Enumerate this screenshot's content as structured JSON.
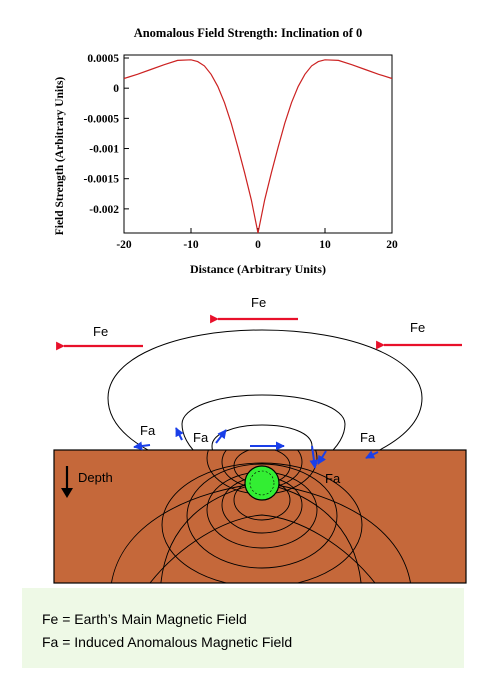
{
  "colors": {
    "curve": "#cc2222",
    "ground": "#c5683a",
    "sphere": "#33ee33",
    "fe_arrow": "#e8102a",
    "fa_arrow": "#1a3fe8",
    "legend_bg": "#eef9e6"
  },
  "chart_data": {
    "type": "line",
    "title": "Anomalous Field Strength: Inclination of 0",
    "xlabel": "Distance (Arbitrary Units)",
    "ylabel": "Field Strength (Arbitrary Units)",
    "xlim": [
      -20,
      20
    ],
    "ylim": [
      -0.0024,
      0.00055
    ],
    "xticks": [
      "-20",
      "-10",
      "0",
      "10",
      "20"
    ],
    "yticks": [
      "0.0005",
      "0",
      "-0.0005",
      "-0.001",
      "-0.0015",
      "-0.002"
    ],
    "series": [
      {
        "x": [
          -20,
          -18,
          -16,
          -14,
          -12,
          -10,
          -9,
          -8,
          -7,
          -6,
          -5,
          -4,
          -3,
          -2,
          -1,
          0,
          1,
          2,
          3,
          4,
          5,
          6,
          7,
          8,
          9,
          10,
          12,
          14,
          16,
          18,
          20
        ],
        "values": [
          0.00016,
          0.00023,
          0.00031,
          0.00039,
          0.00046,
          0.00047,
          0.00044,
          0.00037,
          0.00023,
          3e-05,
          -0.00024,
          -0.00058,
          -0.00098,
          -0.0014,
          -0.00185,
          -0.0024,
          -0.00185,
          -0.0014,
          -0.00098,
          -0.00058,
          -0.00024,
          3e-05,
          0.00023,
          0.00037,
          0.00044,
          0.00047,
          0.00046,
          0.00039,
          0.00031,
          0.00023,
          0.00016
        ]
      }
    ]
  },
  "diagram": {
    "fe_labels": [
      "Fe",
      "Fe",
      "Fe"
    ],
    "fa_labels": [
      "Fa",
      "Fa",
      "Fa",
      "Fa"
    ],
    "depth_label": "Depth"
  },
  "legend": {
    "fe": "Fe = Earth’s Main Magnetic Field",
    "fa": "Fa = Induced Anomalous Magnetic Field"
  }
}
